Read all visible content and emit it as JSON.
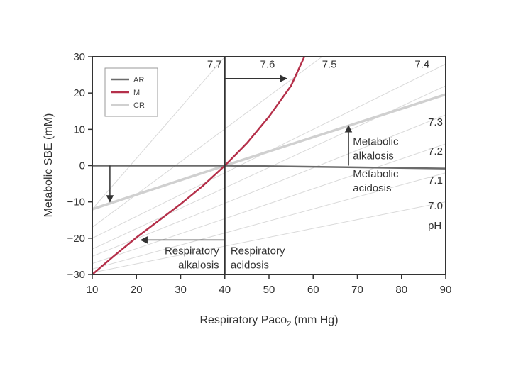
{
  "chart_data": {
    "type": "line",
    "xlabel": "Respiratory Paco",
    "xlabel_sub": "2",
    "xlabel_unit": "(mm Hg)",
    "ylabel": "Metabolic SBE (mM)",
    "xlim": [
      10,
      90
    ],
    "ylim": [
      -30,
      30
    ],
    "x_ticks": [
      10,
      20,
      30,
      40,
      50,
      60,
      70,
      80,
      90
    ],
    "y_ticks": [
      -30,
      -20,
      -10,
      0,
      10,
      20,
      30
    ],
    "grid": false,
    "legend_position": "top-left",
    "series": [
      {
        "name": "AR",
        "color": "#6b6b6b",
        "x": [
          10,
          40,
          90
        ],
        "y": [
          0,
          0,
          -0.8
        ]
      },
      {
        "name": "M",
        "color": "#b5304a",
        "x": [
          10,
          15,
          20,
          25,
          30,
          35,
          40,
          45,
          50,
          55,
          58
        ],
        "y": [
          -30,
          -24.8,
          -19.8,
          -15.2,
          -10.6,
          -5.6,
          0,
          6.2,
          13.5,
          22,
          30
        ]
      },
      {
        "name": "CR",
        "color": "#d0d0d0",
        "x": [
          10,
          40,
          90
        ],
        "y": [
          -12,
          0,
          19.6
        ]
      }
    ],
    "isopleths": [
      {
        "ph": "7.7",
        "x": [
          10,
          40
        ],
        "y": [
          -12,
          30
        ]
      },
      {
        "ph": "7.6",
        "x": [
          10,
          62
        ],
        "y": [
          -17,
          30
        ]
      },
      {
        "ph": "7.5",
        "x": [
          10,
          90
        ],
        "y": [
          -20,
          28
        ]
      },
      {
        "ph": "7.4",
        "x": [
          10,
          90
        ],
        "y": [
          -23,
          22
        ]
      },
      {
        "ph": "7.3",
        "x": [
          10,
          90
        ],
        "y": [
          -25,
          14
        ]
      },
      {
        "ph": "7.2",
        "x": [
          10,
          90
        ],
        "y": [
          -27,
          6
        ]
      },
      {
        "ph": "7.1",
        "x": [
          10,
          90
        ],
        "y": [
          -28.5,
          -2
        ]
      },
      {
        "ph": "7.0",
        "x": [
          10,
          90
        ],
        "y": [
          -29.5,
          -10
        ]
      }
    ],
    "ph_labels": [
      {
        "text": "7.7",
        "x": 36,
        "y": 27
      },
      {
        "text": "7.6",
        "x": 48,
        "y": 27
      },
      {
        "text": "7.5",
        "x": 62,
        "y": 27
      },
      {
        "text": "7.4",
        "x": 83,
        "y": 27
      },
      {
        "text": "7.3",
        "x": 86,
        "y": 11
      },
      {
        "text": "7.2",
        "x": 86,
        "y": 3
      },
      {
        "text": "7.1",
        "x": 86,
        "y": -5
      },
      {
        "text": "7.0",
        "x": 86,
        "y": -12
      },
      {
        "text": "pH",
        "x": 86,
        "y": -17.5
      }
    ],
    "annotations": [
      {
        "lines": [
          "Metabolic",
          "alkalosis"
        ],
        "x": 69,
        "y": 5.7,
        "anchor": "start"
      },
      {
        "lines": [
          "Metabolic",
          "acidosis"
        ],
        "x": 69,
        "y": -3.2,
        "anchor": "start"
      },
      {
        "lines": [
          "Respiratory",
          "alkalosis"
        ],
        "x": 38.7,
        "y": -24.4,
        "anchor": "end"
      },
      {
        "lines": [
          "Respiratory",
          "acidosis"
        ],
        "x": 41.3,
        "y": -24.4,
        "anchor": "start"
      }
    ],
    "arrows": [
      {
        "from": [
          40,
          24
        ],
        "to": [
          54,
          24
        ]
      },
      {
        "from": [
          68,
          0
        ],
        "to": [
          68,
          11
        ]
      },
      {
        "from": [
          14,
          0
        ],
        "to": [
          14,
          -10
        ]
      },
      {
        "from": [
          40,
          -20.5
        ],
        "to": [
          21,
          -20.5
        ]
      }
    ],
    "reference_lines": [
      {
        "orientation": "vertical",
        "x": 40
      }
    ]
  }
}
